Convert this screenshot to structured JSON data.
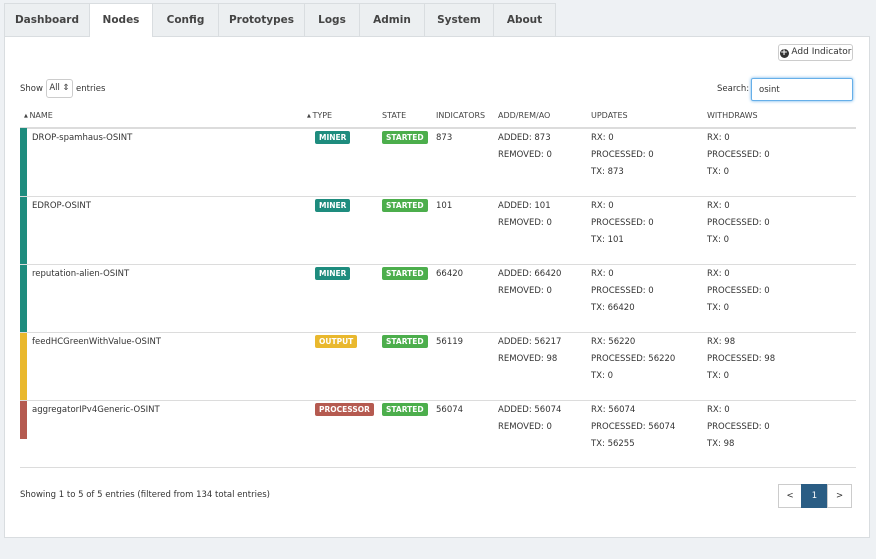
{
  "tabs": [
    {
      "label": "Dashboard",
      "active": false
    },
    {
      "label": "Nodes",
      "active": true
    },
    {
      "label": "Config",
      "active": false
    },
    {
      "label": "Prototypes",
      "active": false
    },
    {
      "label": "Logs",
      "active": false
    },
    {
      "label": "Admin",
      "active": false
    },
    {
      "label": "System",
      "active": false
    },
    {
      "label": "About",
      "active": false
    }
  ],
  "add_button": "Add Indicator",
  "show": {
    "label": "Show",
    "value": "All",
    "suffix": "entries"
  },
  "search": {
    "label": "Search:",
    "value": "osint"
  },
  "table": {
    "columns": [
      "NAME",
      "TYPE",
      "STATE",
      "INDICATORS",
      "ADD/REM/AO",
      "UPDATES",
      "WITHDRAWS"
    ],
    "rows": [
      {
        "name": "DROP-spamhaus-OSINT",
        "type": "MINER",
        "color": "#1e8c7e",
        "state": "STARTED",
        "indicators": 873,
        "add_rem_ao": [
          "ADDED: 873",
          "REMOVED: 0"
        ],
        "updates": [
          "RX: 0",
          "PROCESSED: 0",
          "TX: 873"
        ],
        "withdraws": [
          "RX: 0",
          "PROCESSED: 0",
          "TX: 0"
        ]
      },
      {
        "name": "EDROP-OSINT",
        "type": "MINER",
        "color": "#1e8c7e",
        "state": "STARTED",
        "indicators": 101,
        "add_rem_ao": [
          "ADDED: 101",
          "REMOVED: 0"
        ],
        "updates": [
          "RX: 0",
          "PROCESSED: 0",
          "TX: 101"
        ],
        "withdraws": [
          "RX: 0",
          "PROCESSED: 0",
          "TX: 0"
        ]
      },
      {
        "name": "reputation-alien-OSINT",
        "type": "MINER",
        "color": "#1e8c7e",
        "state": "STARTED",
        "indicators": 66420,
        "add_rem_ao": [
          "ADDED: 66420",
          "REMOVED: 0"
        ],
        "updates": [
          "RX: 0",
          "PROCESSED: 0",
          "TX: 66420"
        ],
        "withdraws": [
          "RX: 0",
          "PROCESSED: 0",
          "TX: 0"
        ]
      },
      {
        "name": "feedHCGreenWithValue-OSINT",
        "type": "OUTPUT",
        "color": "#e9b82e",
        "state": "STARTED",
        "indicators": 56119,
        "add_rem_ao": [
          "ADDED: 56217",
          "REMOVED: 98"
        ],
        "updates": [
          "RX: 56220",
          "PROCESSED: 56220",
          "TX: 0"
        ],
        "withdraws": [
          "RX: 98",
          "PROCESSED: 98",
          "TX: 0"
        ]
      },
      {
        "name": "aggregatorIPv4Generic-OSINT",
        "type": "PROCESSOR",
        "color": "#b55a50",
        "state": "STARTED",
        "indicators": 56074,
        "add_rem_ao": [
          "ADDED: 56074",
          "REMOVED: 0"
        ],
        "updates": [
          "RX: 56074",
          "PROCESSED: 56074",
          "TX: 56255"
        ],
        "withdraws": [
          "RX: 0",
          "PROCESSED: 0",
          "TX: 98"
        ]
      }
    ]
  },
  "footer": "Showing 1 to 5 of 5 entries (filtered from 134 total entries)",
  "pagination": [
    "<",
    "1",
    ">"
  ]
}
